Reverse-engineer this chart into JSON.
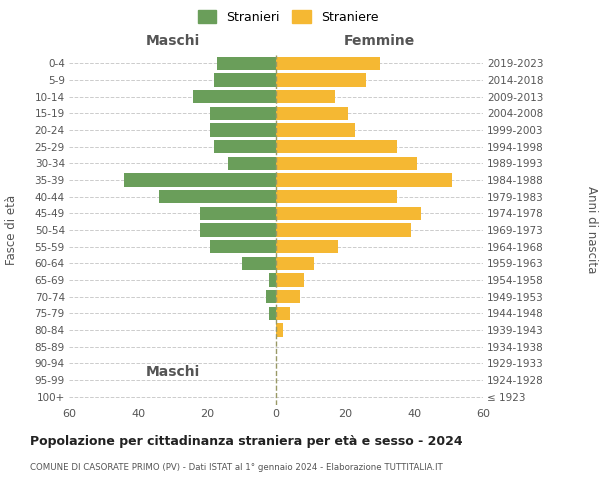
{
  "age_groups": [
    "100+",
    "95-99",
    "90-94",
    "85-89",
    "80-84",
    "75-79",
    "70-74",
    "65-69",
    "60-64",
    "55-59",
    "50-54",
    "45-49",
    "40-44",
    "35-39",
    "30-34",
    "25-29",
    "20-24",
    "15-19",
    "10-14",
    "5-9",
    "0-4"
  ],
  "birth_years": [
    "≤ 1923",
    "1924-1928",
    "1929-1933",
    "1934-1938",
    "1939-1943",
    "1944-1948",
    "1949-1953",
    "1954-1958",
    "1959-1963",
    "1964-1968",
    "1969-1973",
    "1974-1978",
    "1979-1983",
    "1984-1988",
    "1989-1993",
    "1994-1998",
    "1999-2003",
    "2004-2008",
    "2009-2013",
    "2014-2018",
    "2019-2023"
  ],
  "males": [
    0,
    0,
    0,
    0,
    0,
    2,
    3,
    2,
    10,
    19,
    22,
    22,
    34,
    44,
    14,
    18,
    19,
    19,
    24,
    18,
    17
  ],
  "females": [
    0,
    0,
    0,
    0,
    2,
    4,
    7,
    8,
    11,
    18,
    39,
    42,
    35,
    51,
    41,
    35,
    23,
    21,
    17,
    26,
    30
  ],
  "male_color": "#6a9e5a",
  "female_color": "#f5b833",
  "background_color": "#ffffff",
  "grid_color": "#cccccc",
  "center_line_color": "#999966",
  "title": "Popolazione per cittadinanza straniera per età e sesso - 2024",
  "subtitle": "COMUNE DI CASORATE PRIMO (PV) - Dati ISTAT al 1° gennaio 2024 - Elaborazione TUTTITALIA.IT",
  "xlabel_left": "Maschi",
  "xlabel_right": "Femmine",
  "ylabel_left": "Fasce di età",
  "ylabel_right": "Anni di nascita",
  "legend_male": "Stranieri",
  "legend_female": "Straniere",
  "xlim": 60
}
